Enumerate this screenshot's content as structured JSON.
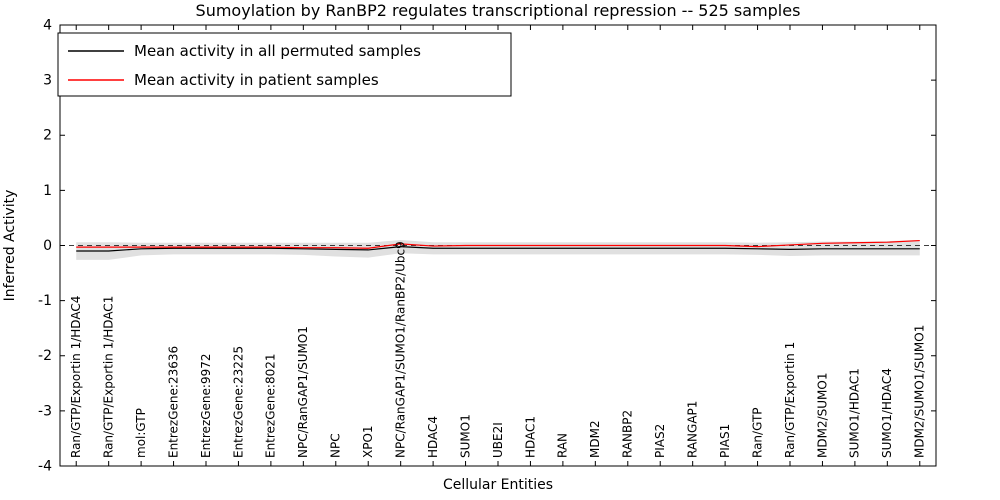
{
  "figure": {
    "title": "Sumoylation by RanBP2 regulates transcriptional repression -- 525 samples",
    "xlabel": "Cellular Entities",
    "ylabel": "Inferred Activity"
  },
  "legend": {
    "position": "upper left",
    "items": [
      {
        "label": "Mean activity in all permuted samples",
        "color": "#000000"
      },
      {
        "label": "Mean activity in patient samples",
        "color": "#ff0000"
      }
    ]
  },
  "chart_data": {
    "type": "line",
    "title": "Sumoylation by RanBP2 regulates transcriptional repression -- 525 samples",
    "xlabel": "Cellular Entities",
    "ylabel": "Inferred Activity",
    "ylim": [
      -4,
      4
    ],
    "yticks": [
      -4,
      -3,
      -2,
      -1,
      0,
      1,
      2,
      3,
      4
    ],
    "grid": false,
    "legend_position": "upper left",
    "categories": [
      "Ran/GTP/Exportin 1/HDAC4",
      "Ran/GTP/Exportin 1/HDAC1",
      "mol:GTP",
      "EntrezGene:23636",
      "EntrezGene:9972",
      "EntrezGene:23225",
      "EntrezGene:8021",
      "NPC/RanGAP1/SUMO1",
      "NPC",
      "XPO1",
      "NPC/RanGAP1/SUMO1/RanBP2/Ubc9",
      "HDAC4",
      "SUMO1",
      "UBE2I",
      "HDAC1",
      "RAN",
      "MDM2",
      "RANBP2",
      "PIAS2",
      "RANGAP1",
      "PIAS1",
      "Ran/GTP",
      "Ran/GTP/Exportin 1",
      "MDM2/SUMO1",
      "SUMO1/HDAC1",
      "SUMO1/HDAC4",
      "MDM2/SUMO1/SUMO1"
    ],
    "series": [
      {
        "name": "Mean activity in all permuted samples",
        "color": "#000000",
        "style": "solid",
        "values": [
          -0.1,
          -0.1,
          -0.06,
          -0.05,
          -0.05,
          -0.05,
          -0.05,
          -0.06,
          -0.07,
          -0.08,
          -0.02,
          -0.05,
          -0.05,
          -0.05,
          -0.05,
          -0.05,
          -0.05,
          -0.05,
          -0.05,
          -0.05,
          -0.05,
          -0.06,
          -0.07,
          -0.06,
          -0.06,
          -0.06,
          -0.06
        ]
      },
      {
        "name": "Mean activity in patient samples",
        "color": "#ff0000",
        "style": "solid",
        "values": [
          -0.03,
          -0.03,
          -0.03,
          -0.03,
          -0.03,
          -0.03,
          -0.03,
          -0.04,
          -0.04,
          -0.05,
          0.03,
          -0.01,
          0.0,
          0.0,
          0.0,
          0.0,
          0.0,
          0.0,
          0.0,
          0.0,
          0.0,
          -0.02,
          0.01,
          0.04,
          0.05,
          0.06,
          0.09
        ]
      }
    ],
    "band": {
      "name": "permuted-activity-spread",
      "color": "#e0e0e0",
      "upper": [
        0.06,
        0.06,
        0.05,
        0.05,
        0.05,
        0.05,
        0.05,
        0.05,
        0.05,
        0.05,
        0.1,
        0.06,
        0.06,
        0.06,
        0.06,
        0.06,
        0.06,
        0.06,
        0.06,
        0.06,
        0.06,
        0.05,
        0.06,
        0.07,
        0.07,
        0.08,
        0.1
      ],
      "lower": [
        -0.26,
        -0.26,
        -0.18,
        -0.16,
        -0.16,
        -0.16,
        -0.16,
        -0.17,
        -0.2,
        -0.22,
        -0.14,
        -0.16,
        -0.16,
        -0.16,
        -0.16,
        -0.16,
        -0.16,
        -0.16,
        -0.16,
        -0.16,
        -0.16,
        -0.17,
        -0.19,
        -0.18,
        -0.18,
        -0.18,
        -0.18
      ]
    },
    "zero_line": {
      "value": 0,
      "style": "dashed",
      "color": "#000000"
    }
  }
}
